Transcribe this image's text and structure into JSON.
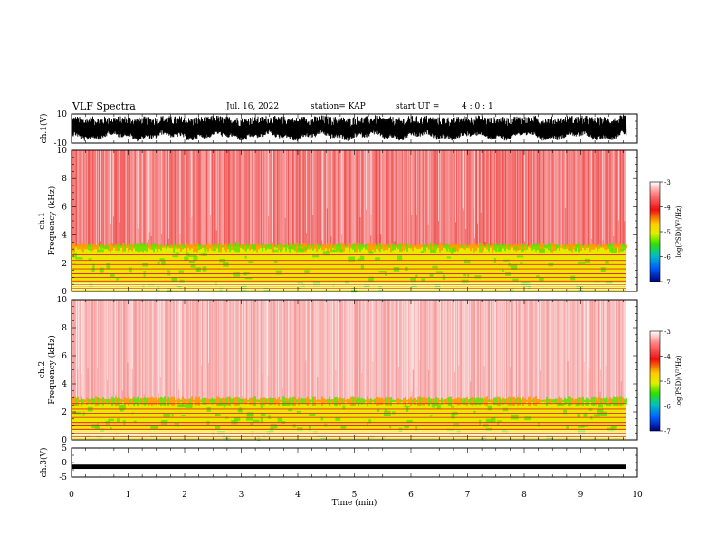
{
  "header": {
    "title": "VLF Spectra",
    "date": "Jul. 16, 2022",
    "station": "station= KAP",
    "start_label": "start  UT =",
    "start_time": "4 : 0 : 1"
  },
  "chart_data": [
    {
      "type": "line",
      "name": "ch1-waveform",
      "ylabel": "ch.1(V)",
      "ylim": [
        -10,
        10
      ],
      "yticks": [
        "10",
        "-10"
      ],
      "xlim": [
        0,
        10
      ],
      "note_values": "dense black noise trace spanning roughly -6 to +8 V across 0 to 9.8 min"
    },
    {
      "type": "heatmap",
      "name": "ch1-spectrogram",
      "ylabel": "ch.1\nFrequency (kHz)",
      "ylabel_lines": [
        "ch.1",
        "Frequency (kHz)"
      ],
      "ylim": [
        0,
        10
      ],
      "yticks": [
        "0",
        "2",
        "4",
        "6",
        "8",
        "10"
      ],
      "xlim": [
        0,
        9.8
      ],
      "colorbar": {
        "label": "log(PSD)(V²/Hz)",
        "range": [
          -7,
          -3
        ],
        "ticks": [
          "-3",
          "-4",
          "-5",
          "-6",
          "-7"
        ]
      },
      "bands": [
        {
          "freq_khz": [
            0,
            3.2
          ],
          "level": -4.5,
          "description": "yellow/green hiss band"
        },
        {
          "freq_khz": [
            3.2,
            10
          ],
          "level": -3.6,
          "description": "red background"
        }
      ]
    },
    {
      "type": "heatmap",
      "name": "ch2-spectrogram",
      "ylabel": "ch.2\nFrequency (kHz)",
      "ylabel_lines": [
        "ch.2",
        "Frequency (kHz)"
      ],
      "ylim": [
        0,
        10
      ],
      "yticks": [
        "0",
        "2",
        "4",
        "6",
        "8",
        "10"
      ],
      "xlim": [
        0,
        9.8
      ],
      "colorbar": {
        "label": "log(PSD)(V²/Hz)",
        "range": [
          -7,
          -3
        ],
        "ticks": [
          "-3",
          "-4",
          "-5",
          "-6",
          "-7"
        ]
      },
      "bands": [
        {
          "freq_khz": [
            0,
            2.8
          ],
          "level": -4.5,
          "description": "yellow/green hiss band"
        },
        {
          "freq_khz": [
            2.8,
            10
          ],
          "level": -3.4,
          "description": "red/pink background"
        }
      ]
    },
    {
      "type": "line",
      "name": "ch3-waveform",
      "ylabel": "ch.3(V)",
      "ylim": [
        -5,
        5
      ],
      "yticks": [
        "5",
        "0",
        "-5"
      ],
      "xlim": [
        0,
        10
      ],
      "note_values": "thick black trace near -1.5 V across 0 to 9.8 min"
    }
  ],
  "x_axis": {
    "label": "Time (min)",
    "ticks": [
      "0",
      "1",
      "2",
      "3",
      "4",
      "5",
      "6",
      "7",
      "8",
      "9",
      "10"
    ],
    "range": [
      0,
      10
    ]
  },
  "colors": {
    "background_red": "#ee2222",
    "hiss_yellow": "#e8e800",
    "hiss_green": "#60e000",
    "trace": "#000000"
  }
}
